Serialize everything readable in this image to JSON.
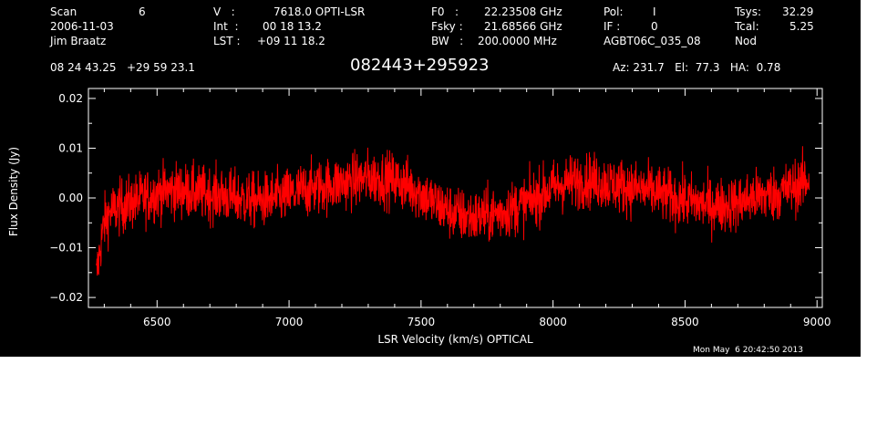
{
  "header": {
    "scan_label": "Scan",
    "scan_value": "6",
    "date": "2006-11-03",
    "observer": "Jim Braatz",
    "v_label": "V   :",
    "v_value": "7618.0 OPTI-LSR",
    "int_label": "Int  :",
    "int_value": "00 18 13.2",
    "lst_label": "LST :",
    "lst_value": "+09 11 18.2",
    "f0_label": "F0   :",
    "f0_value": "22.23508 GHz",
    "fsky_label": "Fsky :",
    "fsky_value": "21.68566 GHz",
    "bw_label": "BW   :",
    "bw_value": "200.0000 MHz",
    "pol_label": "Pol:",
    "pol_value": "I",
    "if_label": "IF :",
    "if_value": "0",
    "project": "AGBT06C_035_08",
    "tsys_label": "Tsys:",
    "tsys_value": "32.29",
    "tcal_label": "Tcal:",
    "tcal_value": "5.25",
    "proc": "Nod",
    "coords": "08 24 43.25   +29 59 23.1",
    "source": "082443+295923",
    "az_el_ha": "Az: 231.7   El:  77.3   HA:  0.78"
  },
  "footer": {
    "timestamp": "Mon May  6 20:42:50 2013"
  },
  "chart_data": {
    "type": "line",
    "title": "082443+295923",
    "xlabel": "LSR Velocity (km/s) OPTICAL",
    "ylabel": "Flux Density (Jy)",
    "xlim": [
      6240,
      9020
    ],
    "ylim": [
      -0.022,
      0.022
    ],
    "xticks": [
      6500,
      7000,
      7500,
      8000,
      8500,
      9000
    ],
    "xtick_labels": [
      "6500",
      "7000",
      "7500",
      "8000",
      "8500",
      "9000"
    ],
    "yticks": [
      -0.02,
      -0.01,
      0.0,
      0.01,
      0.02
    ],
    "ytick_labels": [
      "−0.02",
      "−0.01",
      "0.00",
      "0.01",
      "0.02"
    ],
    "line_color": "#ff0000",
    "series": [
      {
        "x": [
          6270,
          6280,
          6290,
          6300,
          6320,
          6350,
          6400,
          6450,
          6500,
          6550,
          6600,
          6650,
          6700,
          6750,
          6800,
          6850,
          6900,
          6950,
          7000,
          7050,
          7100,
          7150,
          7200,
          7250,
          7300,
          7350,
          7400,
          7450,
          7500,
          7550,
          7600,
          7650,
          7700,
          7750,
          7800,
          7850,
          7900,
          7950,
          8000,
          8050,
          8100,
          8150,
          8200,
          8250,
          8300,
          8350,
          8400,
          8450,
          8500,
          8550,
          8600,
          8650,
          8700,
          8750,
          8800,
          8850,
          8900,
          8950,
          8970
        ],
        "y": [
          -0.016,
          -0.012,
          -0.008,
          -0.005,
          -0.003,
          -0.002,
          -0.001,
          0.0,
          0.001,
          0.0015,
          0.0015,
          0.001,
          0.0008,
          0.0005,
          0.0,
          -0.0005,
          -0.0005,
          0.0,
          0.0005,
          0.0015,
          0.002,
          0.0025,
          0.003,
          0.0035,
          0.004,
          0.004,
          0.0035,
          0.0025,
          0.001,
          -0.001,
          -0.0025,
          -0.0035,
          -0.004,
          -0.0035,
          -0.003,
          -0.002,
          -0.001,
          0.0005,
          0.002,
          0.003,
          0.0035,
          0.0035,
          0.003,
          0.0025,
          0.002,
          0.0015,
          0.001,
          0.0,
          -0.0005,
          -0.001,
          -0.0015,
          -0.0015,
          -0.001,
          0.0,
          0.0005,
          0.001,
          0.002,
          0.003,
          0.004
        ]
      }
    ]
  }
}
